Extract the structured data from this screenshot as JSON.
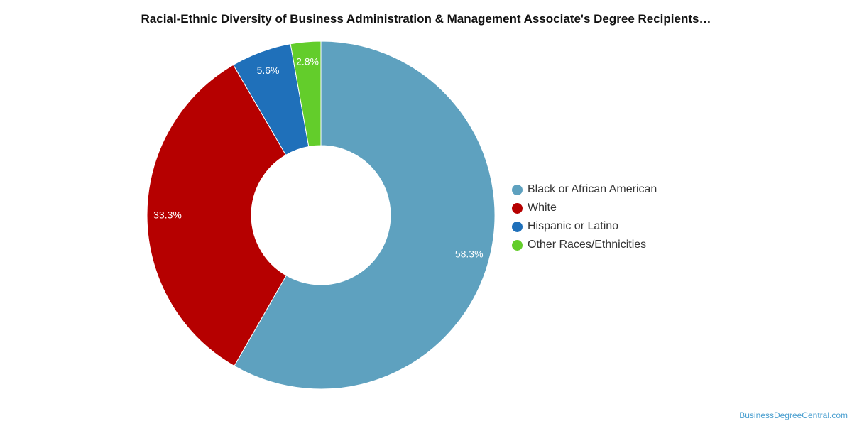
{
  "chart_data": {
    "type": "pie",
    "title": "Racial-Ethnic Diversity of Business Administration & Management Associate's Degree Recipients…",
    "categories": [
      "Black or African American",
      "White",
      "Hispanic or Latino",
      "Other Races/Ethnicities"
    ],
    "values": [
      58.3,
      33.3,
      5.6,
      2.8
    ],
    "labels": [
      "58.3%",
      "33.3%",
      "5.6%",
      "2.8%"
    ],
    "colors": [
      "#5ea1bf",
      "#b60000",
      "#1f70ba",
      "#63cd2b"
    ],
    "donut": true,
    "legend": "right"
  },
  "source": "BusinessDegreeCentral.com"
}
